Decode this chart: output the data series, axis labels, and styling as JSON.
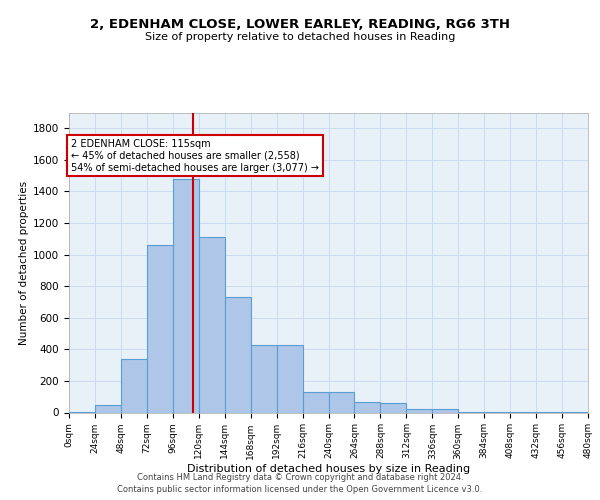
{
  "title_line1": "2, EDENHAM CLOSE, LOWER EARLEY, READING, RG6 3TH",
  "title_line2": "Size of property relative to detached houses in Reading",
  "xlabel": "Distribution of detached houses by size in Reading",
  "ylabel": "Number of detached properties",
  "bar_values": [
    5,
    50,
    340,
    1060,
    1480,
    1110,
    730,
    430,
    430,
    130,
    130,
    65,
    60,
    25,
    20,
    5,
    5,
    3,
    2,
    1
  ],
  "bar_edges": [
    0,
    24,
    48,
    72,
    96,
    120,
    144,
    168,
    192,
    216,
    240,
    264,
    288,
    312,
    336,
    360,
    384,
    408,
    432,
    456,
    480
  ],
  "tick_labels": [
    "0sqm",
    "24sqm",
    "48sqm",
    "72sqm",
    "96sqm",
    "120sqm",
    "144sqm",
    "168sqm",
    "192sqm",
    "216sqm",
    "240sqm",
    "264sqm",
    "288sqm",
    "312sqm",
    "336sqm",
    "360sqm",
    "384sqm",
    "408sqm",
    "432sqm",
    "456sqm",
    "480sqm"
  ],
  "bar_color": "#aec6e8",
  "bar_edge_color": "#5a9fd4",
  "vline_x": 115,
  "vline_color": "#cc0000",
  "annotation_line1": "2 EDENHAM CLOSE: 115sqm",
  "annotation_line2": "← 45% of detached houses are smaller (2,558)",
  "annotation_line3": "54% of semi-detached houses are larger (3,077) →",
  "annotation_box_color": "#cc0000",
  "grid_color": "#ccdcf0",
  "background_color": "#e8f0f8",
  "ylim": [
    0,
    1900
  ],
  "yticks": [
    0,
    200,
    400,
    600,
    800,
    1000,
    1200,
    1400,
    1600,
    1800
  ],
  "footer_line1": "Contains HM Land Registry data © Crown copyright and database right 2024.",
  "footer_line2": "Contains public sector information licensed under the Open Government Licence v3.0."
}
